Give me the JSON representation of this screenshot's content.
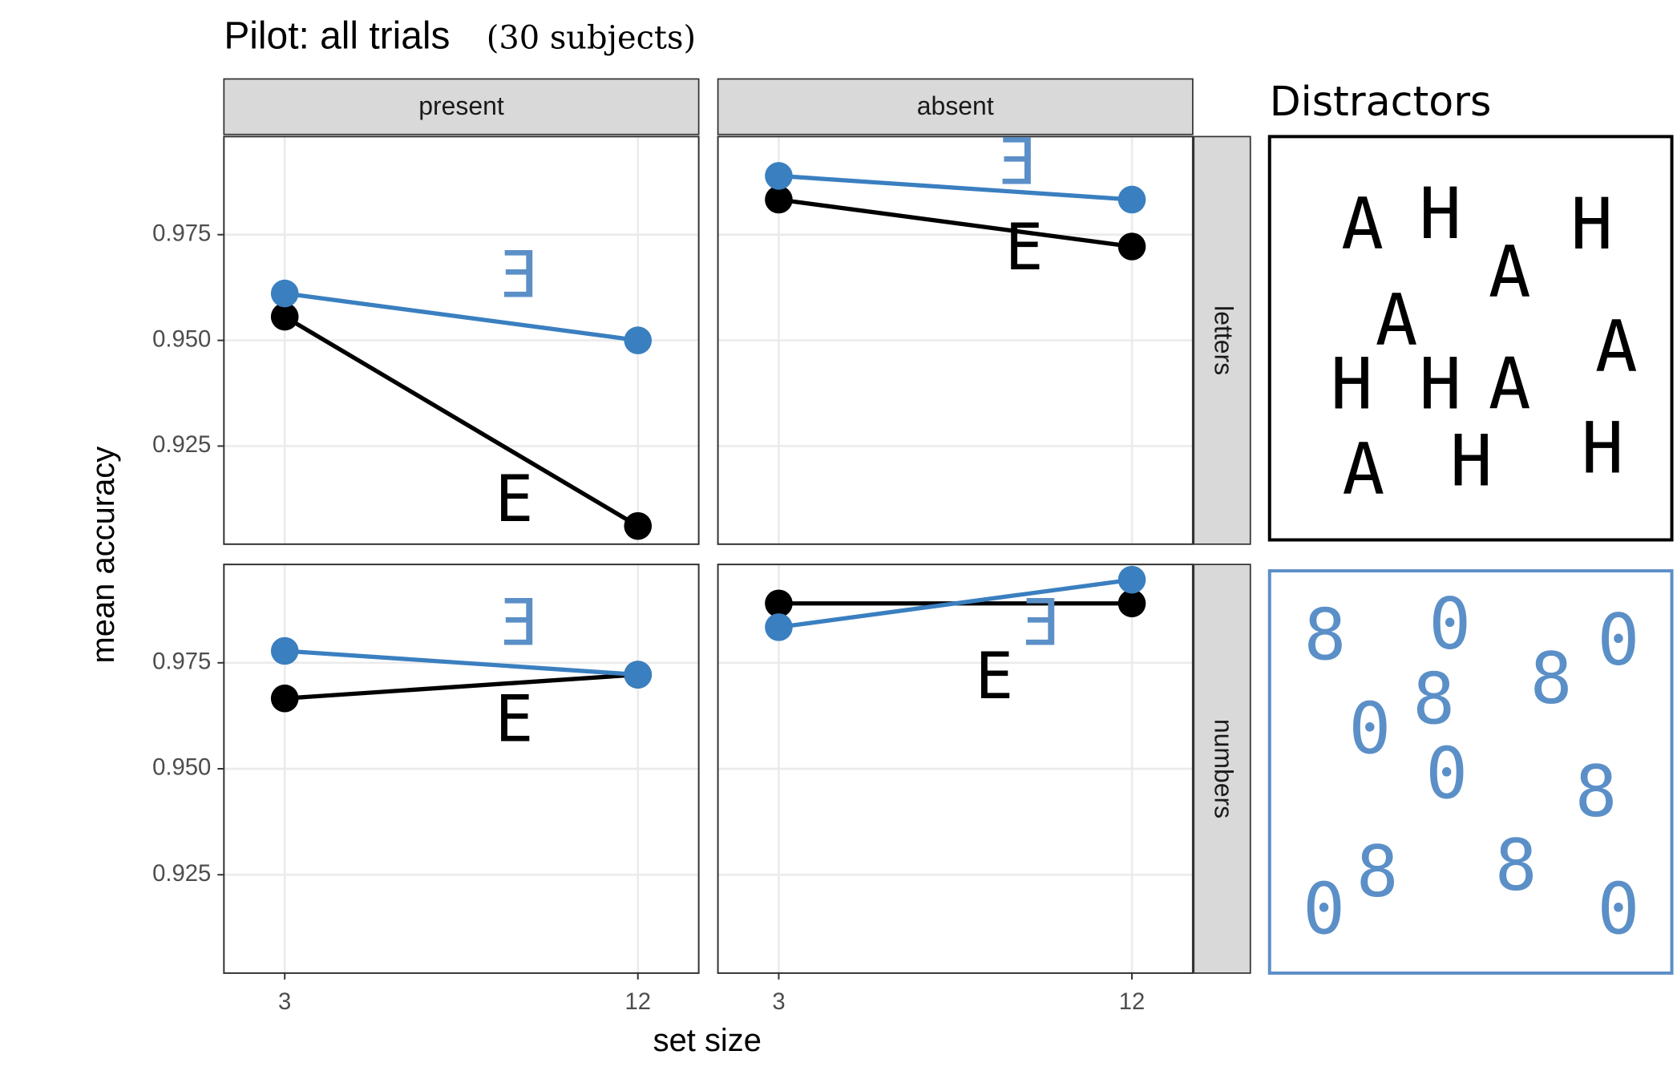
{
  "chart_data": {
    "type": "line",
    "title": "Pilot: all trials",
    "subtitle": "(30 subjects)",
    "xlabel": "set size",
    "ylabel": "mean accuracy",
    "columns": [
      "present",
      "absent"
    ],
    "rows": [
      "letters",
      "numbers"
    ],
    "xlim": [
      1.45,
      13.55
    ],
    "xticks": [
      3,
      12
    ],
    "ylim": [
      0.9018,
      0.9982
    ],
    "yticks": [
      0.925,
      {
        "value": 0.95,
        "label": "0.950"
      },
      0.975
    ],
    "grid": true,
    "panels": [
      {
        "row": 0,
        "col": 0,
        "x": [
          3,
          12
        ],
        "series": [
          {
            "name": "E",
            "color": "#000000",
            "values": [
              0.9556,
              0.9061
            ]
          },
          {
            "name": "Ǝ",
            "color": "#3a7fc0",
            "values": [
              0.9611,
              0.95
            ]
          }
        ]
      },
      {
        "row": 0,
        "col": 1,
        "x": [
          3,
          12
        ],
        "series": [
          {
            "name": "E",
            "color": "#000000",
            "values": [
              0.9833,
              0.9722
            ]
          },
          {
            "name": "Ǝ",
            "color": "#3a7fc0",
            "values": [
              0.9889,
              0.9833
            ]
          }
        ]
      },
      {
        "row": 1,
        "col": 0,
        "x": [
          3,
          12
        ],
        "series": [
          {
            "name": "E",
            "color": "#000000",
            "values": [
              0.9666,
              0.9722
            ]
          },
          {
            "name": "Ǝ",
            "color": "#3a7fc0",
            "values": [
              0.9778,
              0.9722
            ]
          }
        ]
      },
      {
        "row": 1,
        "col": 1,
        "x": [
          3,
          12
        ],
        "series": [
          {
            "name": "E",
            "color": "#000000",
            "values": [
              0.989,
              0.989
            ]
          },
          {
            "name": "Ǝ",
            "color": "#3a7fc0",
            "values": [
              0.9834,
              0.9946
            ]
          }
        ]
      }
    ],
    "distractors": {
      "title": "Distractors",
      "sets": [
        {
          "color": "#000000",
          "items": [
            "A",
            "H",
            "H",
            "A",
            "A",
            "A",
            "H",
            "H",
            "A",
            "A",
            "H",
            "H"
          ]
        },
        {
          "color": "#5b8fc7",
          "items": [
            "8",
            "0",
            "0",
            "8",
            "8",
            "0",
            "0",
            "8",
            "8",
            "8",
            "0",
            "0"
          ]
        }
      ]
    }
  }
}
